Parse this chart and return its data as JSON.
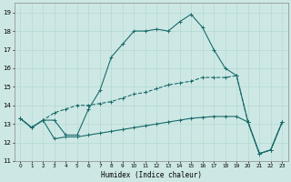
{
  "xlabel": "Humidex (Indice chaleur)",
  "xlim": [
    -0.5,
    23.5
  ],
  "ylim": [
    11,
    19.5
  ],
  "yticks": [
    11,
    12,
    13,
    14,
    15,
    16,
    17,
    18,
    19
  ],
  "xticks": [
    0,
    1,
    2,
    3,
    4,
    5,
    6,
    7,
    8,
    9,
    10,
    11,
    12,
    13,
    14,
    15,
    16,
    17,
    18,
    19,
    20,
    21,
    22,
    23
  ],
  "bg_color": "#cde8e4",
  "line_color": "#1a6b6b",
  "grid_color": "#b3d9d4",
  "line1_x": [
    0,
    1,
    2,
    3,
    4,
    5,
    6,
    7,
    8,
    9,
    10,
    11,
    12,
    13,
    14,
    15,
    16,
    17,
    18,
    19,
    20,
    21,
    22,
    23
  ],
  "line1_y": [
    13.3,
    12.8,
    13.2,
    13.2,
    12.4,
    12.4,
    13.8,
    14.8,
    16.6,
    17.3,
    18.0,
    18.0,
    18.1,
    18.0,
    18.5,
    18.9,
    18.2,
    17.0,
    16.0,
    15.6,
    13.1,
    11.4,
    11.6,
    13.1
  ],
  "line2_x": [
    0,
    1,
    2,
    3,
    4,
    5,
    6,
    7,
    8,
    9,
    10,
    11,
    12,
    13,
    14,
    15,
    16,
    17,
    18,
    19,
    20,
    21,
    22,
    23
  ],
  "line2_y": [
    13.3,
    12.8,
    13.2,
    13.6,
    13.8,
    14.0,
    14.0,
    14.1,
    14.2,
    14.4,
    14.6,
    14.7,
    14.9,
    15.1,
    15.2,
    15.3,
    15.5,
    15.5,
    15.5,
    15.6,
    13.1,
    11.4,
    11.6,
    13.1
  ],
  "line3_x": [
    0,
    1,
    2,
    3,
    4,
    5,
    6,
    7,
    8,
    9,
    10,
    11,
    12,
    13,
    14,
    15,
    16,
    17,
    18,
    19,
    20,
    21,
    22,
    23
  ],
  "line3_y": [
    13.3,
    12.8,
    13.2,
    12.2,
    12.3,
    12.3,
    12.4,
    12.5,
    12.6,
    12.7,
    12.8,
    12.9,
    13.0,
    13.1,
    13.2,
    13.3,
    13.35,
    13.4,
    13.4,
    13.4,
    13.1,
    11.4,
    11.6,
    13.1
  ]
}
